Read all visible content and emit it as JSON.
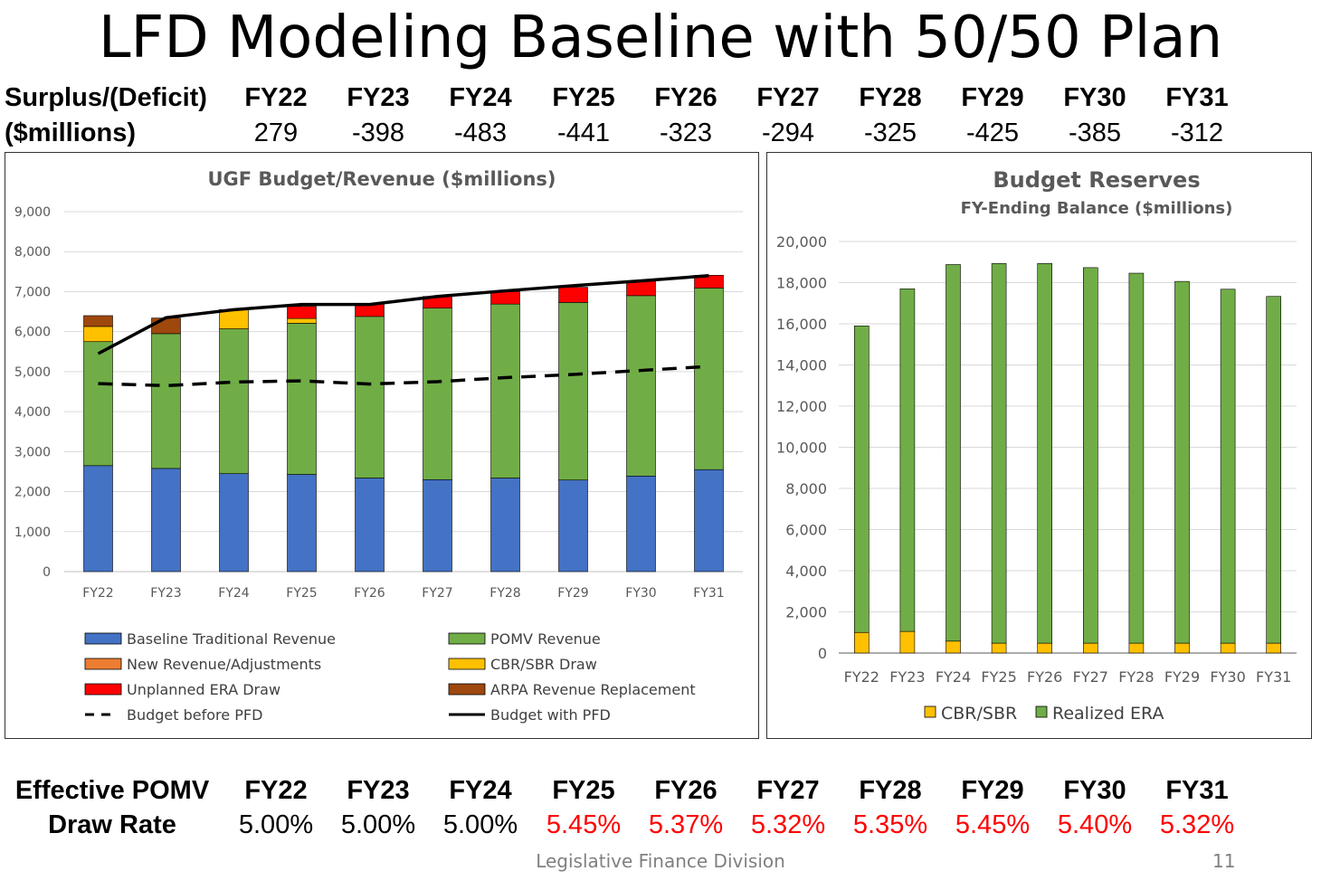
{
  "title": "LFD Modeling Baseline with 50/50 Plan",
  "years": [
    "FY22",
    "FY23",
    "FY24",
    "FY25",
    "FY26",
    "FY27",
    "FY28",
    "FY29",
    "FY30",
    "FY31"
  ],
  "surplus": {
    "label_line1": "Surplus/(Deficit)",
    "label_line2": "($millions)",
    "values": [
      "279",
      "-398",
      "-483",
      "-441",
      "-323",
      "-294",
      "-325",
      "-425",
      "-385",
      "-312"
    ]
  },
  "pomv": {
    "label_line1": "Effective POMV",
    "label_line2": "Draw Rate",
    "values": [
      "5.00%",
      "5.00%",
      "5.00%",
      "5.45%",
      "5.37%",
      "5.32%",
      "5.35%",
      "5.45%",
      "5.40%",
      "5.32%"
    ],
    "highlight": [
      false,
      false,
      false,
      true,
      true,
      true,
      true,
      true,
      true,
      true
    ],
    "highlight_color": "#ff0000"
  },
  "footer": {
    "source": "Legislative Finance Division",
    "page": "11"
  },
  "chart_data": [
    {
      "type": "bar",
      "stacked": true,
      "title": "UGF Budget/Revenue ($millions)",
      "categories": [
        "FY22",
        "FY23",
        "FY24",
        "FY25",
        "FY26",
        "FY27",
        "FY28",
        "FY29",
        "FY30",
        "FY31"
      ],
      "ylim": [
        0,
        9000
      ],
      "yticks": [
        0,
        1000,
        2000,
        3000,
        4000,
        5000,
        6000,
        7000,
        8000,
        9000
      ],
      "ytick_labels": [
        "0",
        "1,000",
        "2,000",
        "3,000",
        "4,000",
        "5,000",
        "6,000",
        "7,000",
        "8,000",
        "9,000"
      ],
      "grid": true,
      "legend_position": "bottom",
      "series": [
        {
          "name": "Baseline Traditional Revenue",
          "color": "#4472c4",
          "values": [
            2650,
            2580,
            2450,
            2430,
            2340,
            2300,
            2340,
            2290,
            2390,
            2550
          ]
        },
        {
          "name": "POMV Revenue",
          "color": "#70ad47",
          "values": [
            3100,
            3370,
            3620,
            3780,
            4040,
            4290,
            4350,
            4440,
            4510,
            4540
          ]
        },
        {
          "name": "New Revenue/Adjustments",
          "color": "#ed7d31",
          "values": [
            0,
            0,
            0,
            0,
            0,
            0,
            0,
            0,
            0,
            0
          ]
        },
        {
          "name": "CBR/SBR Draw",
          "color": "#ffc000",
          "values": [
            380,
            0,
            480,
            120,
            0,
            0,
            0,
            0,
            0,
            0
          ]
        },
        {
          "name": "Unplanned ERA Draw",
          "color": "#ff0000",
          "values": [
            0,
            0,
            0,
            300,
            310,
            290,
            310,
            380,
            360,
            320
          ]
        },
        {
          "name": "ARPA Revenue Replacement",
          "color": "#9e480e",
          "values": [
            270,
            390,
            0,
            0,
            0,
            0,
            0,
            0,
            0,
            0
          ]
        }
      ],
      "lines": [
        {
          "name": "Budget before PFD",
          "color": "#000000",
          "dashed": true,
          "values": [
            4700,
            4650,
            4740,
            4770,
            4690,
            4750,
            4850,
            4930,
            5030,
            5130
          ]
        },
        {
          "name": "Budget with PFD",
          "color": "#000000",
          "dashed": false,
          "values": [
            5450,
            6350,
            6550,
            6680,
            6680,
            6880,
            7020,
            7150,
            7270,
            7400
          ]
        }
      ]
    },
    {
      "type": "bar",
      "stacked": true,
      "title": "Budget Reserves",
      "subtitle": "FY-Ending Balance ($millions)",
      "categories": [
        "FY22",
        "FY23",
        "FY24",
        "FY25",
        "FY26",
        "FY27",
        "FY28",
        "FY29",
        "FY30",
        "FY31"
      ],
      "ylim": [
        0,
        20000
      ],
      "yticks": [
        0,
        2000,
        4000,
        6000,
        8000,
        10000,
        12000,
        14000,
        16000,
        18000,
        20000
      ],
      "ytick_labels": [
        "0",
        "2,000",
        "4,000",
        "6,000",
        "8,000",
        "10,000",
        "12,000",
        "14,000",
        "16,000",
        "18,000",
        "20,000"
      ],
      "grid": true,
      "legend_position": "bottom",
      "series": [
        {
          "name": "CBR/SBR",
          "color": "#ffc000",
          "values": [
            1000,
            1050,
            580,
            480,
            480,
            480,
            480,
            480,
            480,
            480
          ]
        },
        {
          "name": "Realized ERA",
          "color": "#70ad47",
          "values": [
            14900,
            16650,
            18300,
            18450,
            18450,
            18250,
            17980,
            17580,
            17200,
            16850
          ]
        }
      ]
    }
  ]
}
